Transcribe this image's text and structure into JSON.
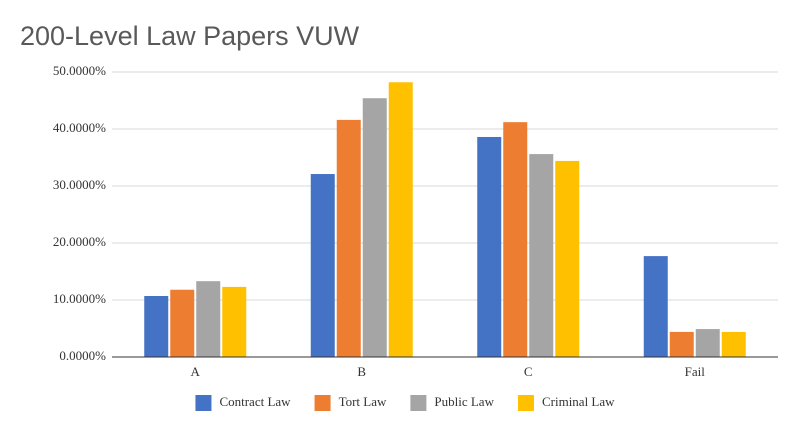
{
  "chart_data": {
    "type": "bar",
    "title": "200-Level Law Papers VUW",
    "categories": [
      "A",
      "B",
      "C",
      "Fail"
    ],
    "series": [
      {
        "name": "Contract Law",
        "color": "#4472c4",
        "values": [
          10.7,
          32.1,
          38.6,
          17.7
        ]
      },
      {
        "name": "Tort Law",
        "color": "#ed7d31",
        "values": [
          11.8,
          41.6,
          41.2,
          4.4
        ]
      },
      {
        "name": "Public Law",
        "color": "#a5a5a5",
        "values": [
          13.3,
          45.4,
          35.6,
          4.9
        ]
      },
      {
        "name": "Criminal Law",
        "color": "#ffc000",
        "values": [
          12.3,
          48.2,
          34.4,
          4.4
        ]
      }
    ],
    "ylim": [
      0,
      50
    ],
    "yticks": [
      {
        "value": 0,
        "label": "0.0000%"
      },
      {
        "value": 10,
        "label": "10.0000%"
      },
      {
        "value": 20,
        "label": "20.0000%"
      },
      {
        "value": 30,
        "label": "30.0000%"
      },
      {
        "value": 40,
        "label": "40.0000%"
      },
      {
        "value": 50,
        "label": "50.0000%"
      }
    ],
    "grid": true,
    "legend": "bottom"
  }
}
